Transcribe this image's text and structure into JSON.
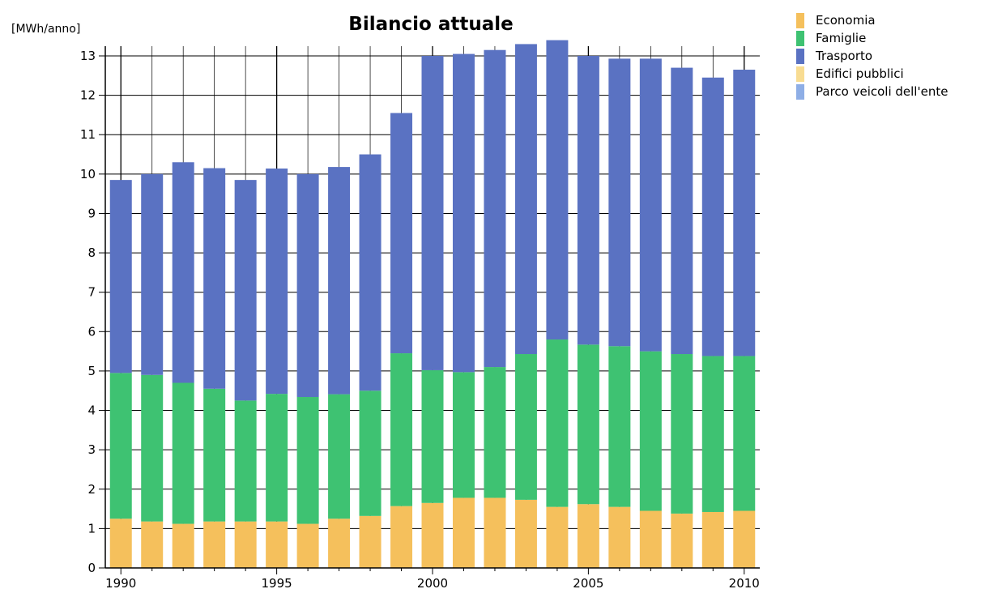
{
  "chart_data": {
    "type": "bar",
    "stacked": true,
    "title": "Bilancio attuale",
    "ylabel": "[MWh/anno]",
    "xlabel": "",
    "ylim": [
      0,
      13
    ],
    "yticks": [
      "0",
      "1",
      "2",
      "3",
      "4",
      "5",
      "6",
      "7",
      "8",
      "9",
      "10",
      "11",
      "12",
      "13"
    ],
    "xticks": [
      "1990",
      "1995",
      "2000",
      "2005",
      "2010"
    ],
    "categories": [
      "1990",
      "1991",
      "1992",
      "1993",
      "1994",
      "1995",
      "1996",
      "1997",
      "1998",
      "1999",
      "2000",
      "2001",
      "2002",
      "2003",
      "2004",
      "2005",
      "2006",
      "2007",
      "2008",
      "2009",
      "2010"
    ],
    "grid": true,
    "legend_position": "top-right",
    "series": [
      {
        "name": "Economia",
        "color": "#f5c05c",
        "values": [
          1.25,
          1.18,
          1.12,
          1.18,
          1.18,
          1.18,
          1.12,
          1.25,
          1.32,
          1.57,
          1.65,
          1.78,
          1.78,
          1.73,
          1.55,
          1.62,
          1.55,
          1.45,
          1.38,
          1.42,
          1.45
        ]
      },
      {
        "name": "Famiglie",
        "color": "#3ec272",
        "values": [
          3.7,
          3.72,
          3.58,
          3.37,
          3.07,
          3.24,
          3.22,
          3.16,
          3.18,
          3.88,
          3.37,
          3.19,
          3.32,
          3.7,
          4.25,
          4.05,
          4.08,
          4.05,
          4.05,
          3.96,
          3.93
        ]
      },
      {
        "name": "Trasporto",
        "color": "#5a72c2",
        "values": [
          4.9,
          5.1,
          5.6,
          5.6,
          5.6,
          5.72,
          5.66,
          5.77,
          6.0,
          6.1,
          7.98,
          8.08,
          8.05,
          7.87,
          7.6,
          7.33,
          7.3,
          7.43,
          7.27,
          7.07,
          7.27
        ]
      },
      {
        "name": "Edifici pubblici",
        "color": "#f8dc92",
        "values": [
          0,
          0,
          0,
          0,
          0,
          0,
          0,
          0,
          0,
          0,
          0,
          0,
          0,
          0,
          0,
          0,
          0,
          0,
          0,
          0,
          0
        ]
      },
      {
        "name": "Parco veicoli dell'ente",
        "color": "#8eaee6",
        "values": [
          0,
          0,
          0,
          0,
          0,
          0,
          0,
          0,
          0,
          0,
          0,
          0,
          0,
          0,
          0,
          0,
          0,
          0,
          0,
          0,
          0
        ]
      }
    ]
  }
}
